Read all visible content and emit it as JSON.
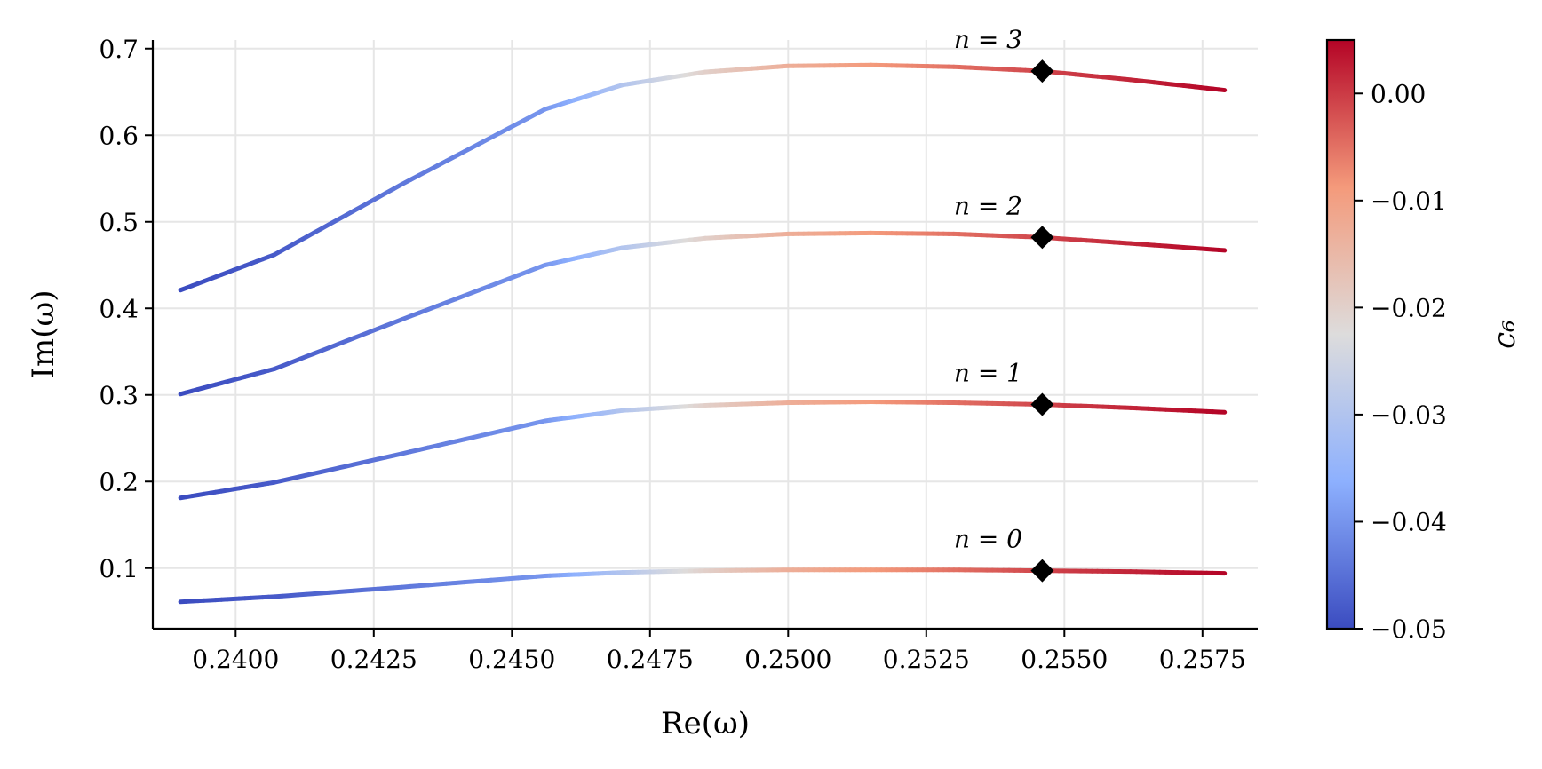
{
  "chart_data": {
    "type": "line",
    "title": "",
    "xlabel": "Re(ω)",
    "ylabel": "Im(ω)",
    "xlim": [
      0.2385,
      0.2585
    ],
    "ylim": [
      0.03,
      0.71
    ],
    "xticks": [
      0.24,
      0.2425,
      0.245,
      0.2475,
      0.25,
      0.2525,
      0.255,
      0.2575
    ],
    "xtick_labels": [
      "0.2400",
      "0.2425",
      "0.2450",
      "0.2475",
      "0.2500",
      "0.2525",
      "0.2550",
      "0.2575"
    ],
    "yticks": [
      0.1,
      0.2,
      0.3,
      0.4,
      0.5,
      0.6,
      0.7
    ],
    "ytick_labels": [
      "0.1",
      "0.2",
      "0.3",
      "0.4",
      "0.5",
      "0.6",
      "0.7"
    ],
    "grid": true,
    "colormap": "coolwarm",
    "colors": {
      "low": "#3b4cc0",
      "mid": "#dddcdc",
      "high": "#b40426"
    },
    "colorbar": {
      "label": "c₆",
      "range": [
        -0.05,
        0.005
      ],
      "ticks": [
        0.0,
        -0.01,
        -0.02,
        -0.03,
        -0.04,
        -0.05
      ],
      "tick_labels": [
        "0.00",
        "−0.01",
        "−0.02",
        "−0.03",
        "−0.04",
        "−0.05"
      ]
    },
    "series": [
      {
        "label": "n = 0",
        "marker": {
          "x": 0.2546,
          "y": 0.097
        },
        "points": [
          {
            "x": 0.239,
            "y": 0.061,
            "c": -0.05
          },
          {
            "x": 0.2407,
            "y": 0.067,
            "c": -0.048
          },
          {
            "x": 0.243,
            "y": 0.078,
            "c": -0.044
          },
          {
            "x": 0.2456,
            "y": 0.091,
            "c": -0.04
          },
          {
            "x": 0.247,
            "y": 0.095,
            "c": -0.03
          },
          {
            "x": 0.2485,
            "y": 0.097,
            "c": -0.02
          },
          {
            "x": 0.25,
            "y": 0.098,
            "c": -0.013
          },
          {
            "x": 0.2515,
            "y": 0.098,
            "c": -0.009
          },
          {
            "x": 0.253,
            "y": 0.098,
            "c": -0.005
          },
          {
            "x": 0.2546,
            "y": 0.097,
            "c": -0.001
          },
          {
            "x": 0.2562,
            "y": 0.096,
            "c": 0.002
          },
          {
            "x": 0.2579,
            "y": 0.094,
            "c": 0.005
          }
        ]
      },
      {
        "label": "n = 1",
        "marker": {
          "x": 0.2546,
          "y": 0.289
        },
        "points": [
          {
            "x": 0.239,
            "y": 0.181,
            "c": -0.05
          },
          {
            "x": 0.2407,
            "y": 0.199,
            "c": -0.048
          },
          {
            "x": 0.243,
            "y": 0.232,
            "c": -0.044
          },
          {
            "x": 0.2456,
            "y": 0.27,
            "c": -0.04
          },
          {
            "x": 0.247,
            "y": 0.282,
            "c": -0.03
          },
          {
            "x": 0.2485,
            "y": 0.288,
            "c": -0.02
          },
          {
            "x": 0.25,
            "y": 0.291,
            "c": -0.013
          },
          {
            "x": 0.2515,
            "y": 0.292,
            "c": -0.009
          },
          {
            "x": 0.253,
            "y": 0.291,
            "c": -0.005
          },
          {
            "x": 0.2546,
            "y": 0.289,
            "c": -0.001
          },
          {
            "x": 0.2562,
            "y": 0.285,
            "c": 0.002
          },
          {
            "x": 0.2579,
            "y": 0.28,
            "c": 0.005
          }
        ]
      },
      {
        "label": "n = 2",
        "marker": {
          "x": 0.2546,
          "y": 0.482
        },
        "points": [
          {
            "x": 0.239,
            "y": 0.301,
            "c": -0.05
          },
          {
            "x": 0.2407,
            "y": 0.33,
            "c": -0.048
          },
          {
            "x": 0.243,
            "y": 0.387,
            "c": -0.044
          },
          {
            "x": 0.2456,
            "y": 0.45,
            "c": -0.04
          },
          {
            "x": 0.247,
            "y": 0.47,
            "c": -0.03
          },
          {
            "x": 0.2485,
            "y": 0.481,
            "c": -0.02
          },
          {
            "x": 0.25,
            "y": 0.486,
            "c": -0.013
          },
          {
            "x": 0.2515,
            "y": 0.487,
            "c": -0.009
          },
          {
            "x": 0.253,
            "y": 0.486,
            "c": -0.005
          },
          {
            "x": 0.2546,
            "y": 0.482,
            "c": -0.001
          },
          {
            "x": 0.2562,
            "y": 0.475,
            "c": 0.002
          },
          {
            "x": 0.2579,
            "y": 0.467,
            "c": 0.005
          }
        ]
      },
      {
        "label": "n = 3",
        "marker": {
          "x": 0.2546,
          "y": 0.674
        },
        "points": [
          {
            "x": 0.239,
            "y": 0.421,
            "c": -0.05
          },
          {
            "x": 0.2407,
            "y": 0.462,
            "c": -0.048
          },
          {
            "x": 0.243,
            "y": 0.543,
            "c": -0.044
          },
          {
            "x": 0.2456,
            "y": 0.63,
            "c": -0.04
          },
          {
            "x": 0.247,
            "y": 0.658,
            "c": -0.03
          },
          {
            "x": 0.2485,
            "y": 0.673,
            "c": -0.02
          },
          {
            "x": 0.25,
            "y": 0.68,
            "c": -0.013
          },
          {
            "x": 0.2515,
            "y": 0.681,
            "c": -0.009
          },
          {
            "x": 0.253,
            "y": 0.679,
            "c": -0.005
          },
          {
            "x": 0.2546,
            "y": 0.674,
            "c": -0.001
          },
          {
            "x": 0.2562,
            "y": 0.664,
            "c": 0.002
          },
          {
            "x": 0.2579,
            "y": 0.652,
            "c": 0.005
          }
        ]
      }
    ]
  }
}
